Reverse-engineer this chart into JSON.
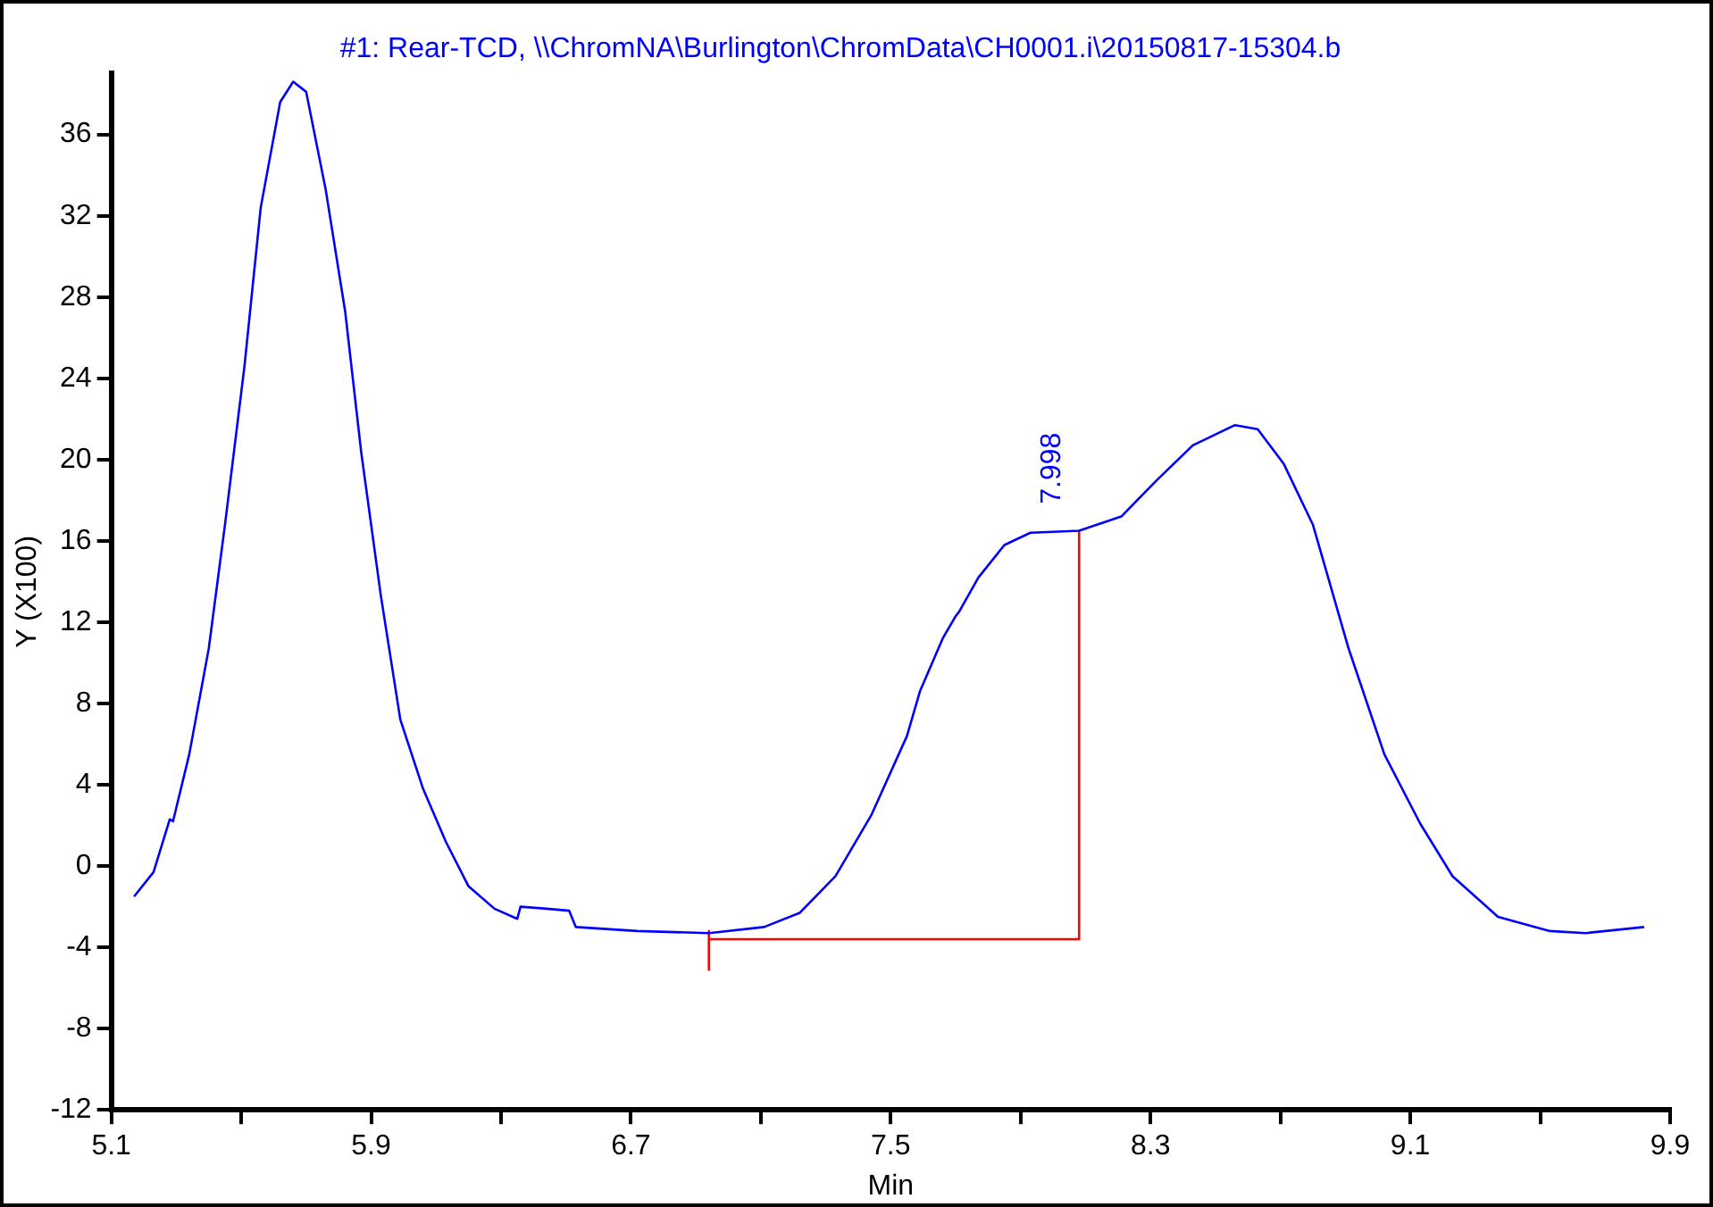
{
  "chart_data": {
    "type": "line",
    "title": "#1: Rear-TCD, \\\\ChromNA\\Burlington\\ChromData\\CH0001.i\\20150817-15304.b",
    "xlabel": "Min",
    "ylabel": "Y (X100)",
    "xlim": [
      5.1,
      9.9
    ],
    "xticks": [
      5.1,
      {
        "value": 5.5,
        "label": null
      },
      5.9,
      {
        "value": 6.3,
        "label": null
      },
      6.7,
      {
        "value": 7.1,
        "label": null
      },
      7.5,
      {
        "value": 7.9,
        "label": null
      },
      8.3,
      {
        "value": 8.7,
        "label": null
      },
      9.1,
      {
        "value": 9.5,
        "label": null
      },
      9.9
    ],
    "ylim": [
      -12,
      39
    ],
    "yticks": [
      -12,
      -8,
      -4,
      0,
      4,
      8,
      12,
      16,
      20,
      24,
      28,
      32,
      36
    ],
    "grid": false,
    "legend": false,
    "marker": "none",
    "annotations": [
      {
        "text": "7.998",
        "x": 7.998,
        "y": 16.4
      }
    ],
    "series": [
      {
        "color": "#0000ff",
        "x": [
          5.17,
          5.23,
          5.28,
          5.29,
          5.34,
          5.4,
          5.45,
          5.51,
          5.56,
          5.62,
          5.66,
          5.7,
          5.76,
          5.82,
          5.87,
          5.93,
          5.99,
          6.06,
          6.13,
          6.2,
          6.28,
          6.35,
          6.36,
          6.44,
          6.51,
          6.53,
          6.72,
          6.94,
          7.11,
          7.22,
          7.33,
          7.44,
          7.55,
          7.57,
          7.59,
          7.66,
          7.7,
          7.71,
          7.77,
          7.85,
          7.93,
          8.08,
          8.21,
          8.32,
          8.43,
          8.56,
          8.63,
          8.71,
          8.8,
          8.91,
          9.02,
          9.13,
          9.23,
          9.37,
          9.53,
          9.64,
          9.82
        ],
        "values": [
          -1.5,
          -0.3,
          2.3,
          2.2,
          5.5,
          10.7,
          16.8,
          24.6,
          32.4,
          37.6,
          38.6,
          38.1,
          33.3,
          27.3,
          20.3,
          13.3,
          7.2,
          3.8,
          1.2,
          -1.0,
          -2.1,
          -2.6,
          -2.0,
          -2.1,
          -2.2,
          -3.0,
          -3.2,
          -3.3,
          -3.0,
          -2.3,
          -0.5,
          2.5,
          6.4,
          7.5,
          8.6,
          11.2,
          12.3,
          12.5,
          14.2,
          15.8,
          16.4,
          16.5,
          17.2,
          19.0,
          20.7,
          21.7,
          21.5,
          19.8,
          16.8,
          10.7,
          5.5,
          2.1,
          -0.5,
          -2.5,
          -3.2,
          -3.3,
          -3.0
        ]
      },
      {
        "color": "#ff0000",
        "x": [
          6.94,
          6.94,
          6.94,
          8.08,
          8.08
        ],
        "values": [
          -3.2,
          -5.1,
          -3.6,
          -3.6,
          16.5
        ]
      }
    ]
  }
}
